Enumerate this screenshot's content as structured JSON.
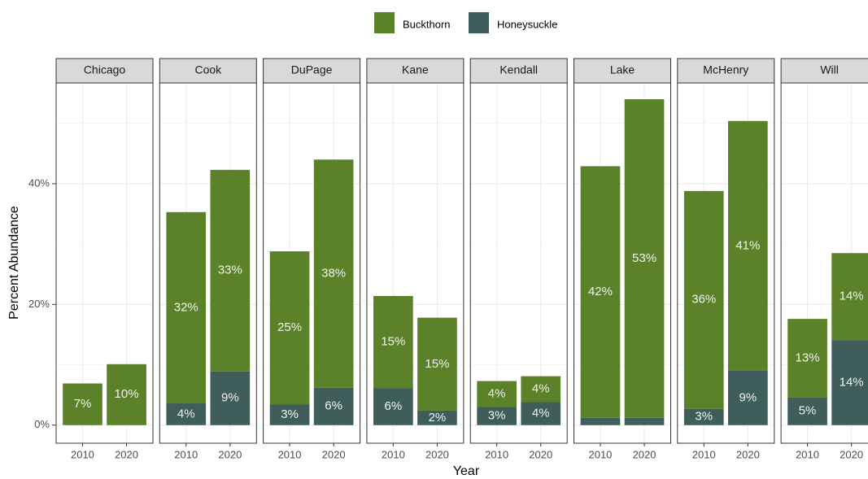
{
  "chart_data": {
    "type": "bar",
    "stacked": true,
    "legend_position": "top",
    "x_label": "Year",
    "y_label": "Percent Abundance",
    "categories": [
      "2010",
      "2020"
    ],
    "ylim": [
      -3,
      56.7
    ],
    "yticks": [
      {
        "value": 0,
        "label": "0%"
      },
      {
        "value": 20,
        "label": "20%"
      },
      {
        "value": 40,
        "label": "40%"
      }
    ],
    "minor_gridlines": [
      10,
      30,
      50
    ],
    "grid": true,
    "series": [
      {
        "name": "Buckthorn",
        "color": "#5b8229"
      },
      {
        "name": "Honeysuckle",
        "color": "#3f5d5b"
      }
    ],
    "facets": [
      {
        "name": "Chicago",
        "series": [
          {
            "values": [
              6.9,
              10.1
            ],
            "value_labels": [
              "7%",
              "10%"
            ]
          },
          {
            "values": [
              0,
              0
            ],
            "value_labels": [
              null,
              null
            ]
          }
        ]
      },
      {
        "name": "Cook",
        "series": [
          {
            "values": [
              31.7,
              33.4
            ],
            "value_labels": [
              "32%",
              "33%"
            ]
          },
          {
            "values": [
              3.6,
              8.9
            ],
            "value_labels": [
              "4%",
              "9%"
            ]
          }
        ]
      },
      {
        "name": "DuPage",
        "series": [
          {
            "values": [
              25.4,
              37.8
            ],
            "value_labels": [
              "25%",
              "38%"
            ]
          },
          {
            "values": [
              3.4,
              6.2
            ],
            "value_labels": [
              "3%",
              "6%"
            ]
          }
        ]
      },
      {
        "name": "Kane",
        "series": [
          {
            "values": [
              15.3,
              15.4
            ],
            "value_labels": [
              "15%",
              "15%"
            ]
          },
          {
            "values": [
              6.1,
              2.4
            ],
            "value_labels": [
              "6%",
              "2%"
            ]
          }
        ]
      },
      {
        "name": "Kendall",
        "series": [
          {
            "values": [
              4.3,
              4.3
            ],
            "value_labels": [
              "4%",
              "4%"
            ]
          },
          {
            "values": [
              3.0,
              3.8
            ],
            "value_labels": [
              "3%",
              "4%"
            ]
          }
        ]
      },
      {
        "name": "Lake",
        "series": [
          {
            "values": [
              41.7,
              52.8
            ],
            "value_labels": [
              "42%",
              "53%"
            ]
          },
          {
            "values": [
              1.2,
              1.2
            ],
            "value_labels": [
              null,
              null
            ]
          }
        ]
      },
      {
        "name": "McHenry",
        "series": [
          {
            "values": [
              36.1,
              41.4
            ],
            "value_labels": [
              "36%",
              "41%"
            ]
          },
          {
            "values": [
              2.7,
              9.0
            ],
            "value_labels": [
              "3%",
              "9%"
            ]
          }
        ]
      },
      {
        "name": "Will",
        "series": [
          {
            "values": [
              13.0,
              14.4
            ],
            "value_labels": [
              "13%",
              "14%"
            ]
          },
          {
            "values": [
              4.6,
              14.1
            ],
            "value_labels": [
              "5%",
              "14%"
            ]
          }
        ]
      }
    ]
  }
}
